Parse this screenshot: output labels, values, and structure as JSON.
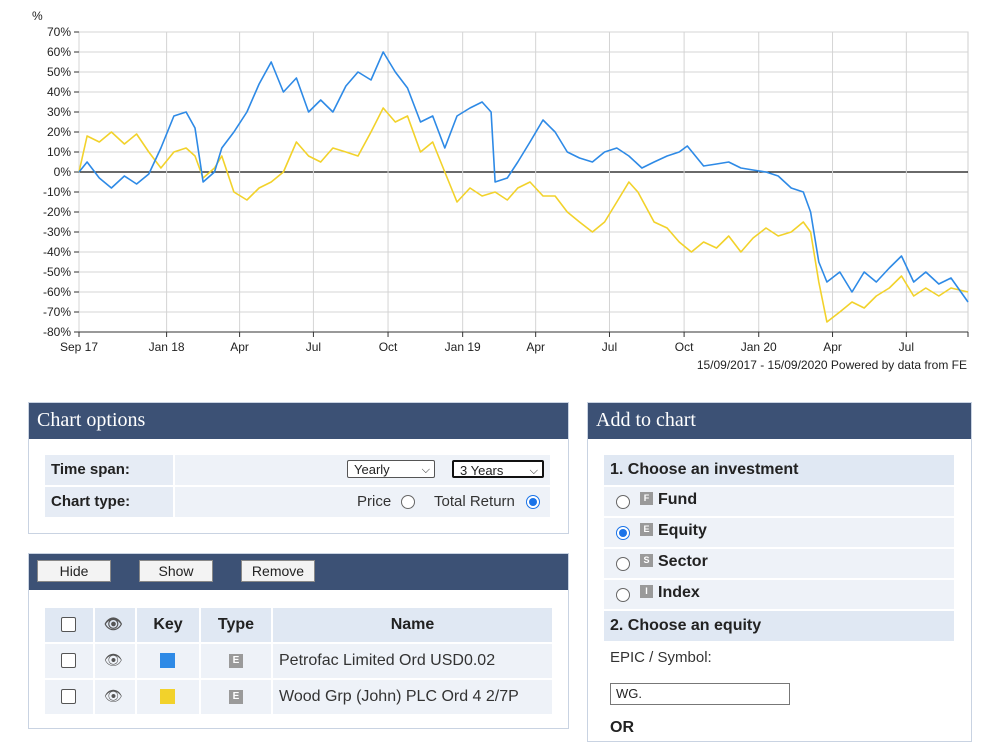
{
  "chart_data": {
    "type": "line",
    "ylabel": "%",
    "ylim": [
      -80,
      70
    ],
    "yticks": [
      70,
      60,
      50,
      40,
      30,
      20,
      10,
      0,
      -10,
      -20,
      -30,
      -40,
      -50,
      -60,
      -70,
      -80
    ],
    "ytick_labels": [
      "70%",
      "60%",
      "50%",
      "40%",
      "30%",
      "20%",
      "10%",
      "0%",
      "-10%",
      "-20%",
      "-30%",
      "-40%",
      "-50%",
      "-60%",
      "-70%",
      "-80%"
    ],
    "xticks": [
      "2017-09-15",
      "2018-01-01",
      "2018-04-01",
      "2018-07-01",
      "2018-10-01",
      "2019-01-01",
      "2019-04-01",
      "2019-07-01",
      "2019-10-01",
      "2020-01-01",
      "2020-04-01",
      "2020-07-01"
    ],
    "xtick_labels": [
      "Sep 17",
      "Jan 18",
      "Apr",
      "Jul",
      "Oct",
      "Jan 19",
      "Apr",
      "Jul",
      "Oct",
      "Jan 20",
      "Apr",
      "Jul"
    ],
    "xlim": [
      "2017-09-15",
      "2020-09-15"
    ],
    "grid": true,
    "footer": "15/09/2017 - 15/09/2020 Powered by data from FE",
    "series": [
      {
        "color": "#2e8ae6",
        "points": [
          [
            "2017-09-15",
            0
          ],
          [
            "2017-09-25",
            5
          ],
          [
            "2017-10-10",
            -3
          ],
          [
            "2017-10-25",
            -8
          ],
          [
            "2017-11-10",
            -2
          ],
          [
            "2017-11-25",
            -6
          ],
          [
            "2017-12-10",
            -1
          ],
          [
            "2017-12-25",
            12
          ],
          [
            "2018-01-10",
            28
          ],
          [
            "2018-01-25",
            30
          ],
          [
            "2018-02-05",
            22
          ],
          [
            "2018-02-15",
            -5
          ],
          [
            "2018-03-01",
            0
          ],
          [
            "2018-03-10",
            12
          ],
          [
            "2018-03-25",
            20
          ],
          [
            "2018-04-10",
            30
          ],
          [
            "2018-04-25",
            44
          ],
          [
            "2018-05-10",
            55
          ],
          [
            "2018-05-25",
            40
          ],
          [
            "2018-06-10",
            47
          ],
          [
            "2018-06-25",
            30
          ],
          [
            "2018-07-10",
            36
          ],
          [
            "2018-07-25",
            30
          ],
          [
            "2018-08-10",
            43
          ],
          [
            "2018-08-25",
            50
          ],
          [
            "2018-09-10",
            46
          ],
          [
            "2018-09-25",
            60
          ],
          [
            "2018-10-10",
            50
          ],
          [
            "2018-10-25",
            42
          ],
          [
            "2018-11-10",
            25
          ],
          [
            "2018-11-25",
            28
          ],
          [
            "2018-12-10",
            12
          ],
          [
            "2018-12-25",
            28
          ],
          [
            "2019-01-10",
            32
          ],
          [
            "2019-01-25",
            35
          ],
          [
            "2019-02-05",
            30
          ],
          [
            "2019-02-10",
            -5
          ],
          [
            "2019-02-25",
            -3
          ],
          [
            "2019-03-10",
            5
          ],
          [
            "2019-03-25",
            15
          ],
          [
            "2019-04-10",
            26
          ],
          [
            "2019-04-25",
            20
          ],
          [
            "2019-05-10",
            10
          ],
          [
            "2019-05-25",
            7
          ],
          [
            "2019-06-10",
            5
          ],
          [
            "2019-06-25",
            10
          ],
          [
            "2019-07-10",
            12
          ],
          [
            "2019-07-25",
            8
          ],
          [
            "2019-08-10",
            2
          ],
          [
            "2019-08-25",
            5
          ],
          [
            "2019-09-10",
            8
          ],
          [
            "2019-09-25",
            10
          ],
          [
            "2019-10-05",
            13
          ],
          [
            "2019-10-25",
            3
          ],
          [
            "2019-11-10",
            4
          ],
          [
            "2019-11-25",
            5
          ],
          [
            "2019-12-10",
            2
          ],
          [
            "2019-12-25",
            1
          ],
          [
            "2020-01-10",
            0
          ],
          [
            "2020-01-25",
            -2
          ],
          [
            "2020-02-10",
            -8
          ],
          [
            "2020-02-25",
            -10
          ],
          [
            "2020-03-05",
            -20
          ],
          [
            "2020-03-15",
            -45
          ],
          [
            "2020-03-25",
            -55
          ],
          [
            "2020-04-10",
            -50
          ],
          [
            "2020-04-25",
            -60
          ],
          [
            "2020-05-10",
            -50
          ],
          [
            "2020-05-25",
            -55
          ],
          [
            "2020-06-10",
            -48
          ],
          [
            "2020-06-25",
            -42
          ],
          [
            "2020-07-10",
            -55
          ],
          [
            "2020-07-25",
            -50
          ],
          [
            "2020-08-10",
            -56
          ],
          [
            "2020-08-25",
            -53
          ],
          [
            "2020-09-15",
            -65
          ]
        ]
      },
      {
        "color": "#f2d22b",
        "points": [
          [
            "2017-09-15",
            0
          ],
          [
            "2017-09-25",
            18
          ],
          [
            "2017-10-10",
            15
          ],
          [
            "2017-10-25",
            20
          ],
          [
            "2017-11-10",
            14
          ],
          [
            "2017-11-25",
            19
          ],
          [
            "2017-12-10",
            10
          ],
          [
            "2017-12-25",
            2
          ],
          [
            "2018-01-10",
            10
          ],
          [
            "2018-01-25",
            12
          ],
          [
            "2018-02-05",
            8
          ],
          [
            "2018-02-15",
            -3
          ],
          [
            "2018-03-01",
            2
          ],
          [
            "2018-03-10",
            8
          ],
          [
            "2018-03-25",
            -10
          ],
          [
            "2018-04-10",
            -14
          ],
          [
            "2018-04-25",
            -8
          ],
          [
            "2018-05-10",
            -5
          ],
          [
            "2018-05-25",
            0
          ],
          [
            "2018-06-10",
            15
          ],
          [
            "2018-06-25",
            8
          ],
          [
            "2018-07-10",
            5
          ],
          [
            "2018-07-25",
            12
          ],
          [
            "2018-08-10",
            10
          ],
          [
            "2018-08-25",
            8
          ],
          [
            "2018-09-10",
            20
          ],
          [
            "2018-09-25",
            32
          ],
          [
            "2018-10-10",
            25
          ],
          [
            "2018-10-25",
            28
          ],
          [
            "2018-11-10",
            10
          ],
          [
            "2018-11-25",
            15
          ],
          [
            "2018-12-10",
            0
          ],
          [
            "2018-12-25",
            -15
          ],
          [
            "2019-01-10",
            -8
          ],
          [
            "2019-01-25",
            -12
          ],
          [
            "2019-02-10",
            -10
          ],
          [
            "2019-02-25",
            -14
          ],
          [
            "2019-03-10",
            -8
          ],
          [
            "2019-03-25",
            -5
          ],
          [
            "2019-04-10",
            -12
          ],
          [
            "2019-04-25",
            -12
          ],
          [
            "2019-05-10",
            -20
          ],
          [
            "2019-05-25",
            -25
          ],
          [
            "2019-06-10",
            -30
          ],
          [
            "2019-06-25",
            -25
          ],
          [
            "2019-07-10",
            -15
          ],
          [
            "2019-07-25",
            -5
          ],
          [
            "2019-08-05",
            -10
          ],
          [
            "2019-08-25",
            -25
          ],
          [
            "2019-09-10",
            -28
          ],
          [
            "2019-09-25",
            -35
          ],
          [
            "2019-10-10",
            -40
          ],
          [
            "2019-10-25",
            -35
          ],
          [
            "2019-11-10",
            -38
          ],
          [
            "2019-11-25",
            -32
          ],
          [
            "2019-12-10",
            -40
          ],
          [
            "2019-12-25",
            -33
          ],
          [
            "2020-01-10",
            -28
          ],
          [
            "2020-01-25",
            -32
          ],
          [
            "2020-02-10",
            -30
          ],
          [
            "2020-02-25",
            -25
          ],
          [
            "2020-03-05",
            -30
          ],
          [
            "2020-03-15",
            -55
          ],
          [
            "2020-03-25",
            -75
          ],
          [
            "2020-04-10",
            -70
          ],
          [
            "2020-04-25",
            -65
          ],
          [
            "2020-05-10",
            -68
          ],
          [
            "2020-05-25",
            -62
          ],
          [
            "2020-06-10",
            -58
          ],
          [
            "2020-06-25",
            -52
          ],
          [
            "2020-07-10",
            -62
          ],
          [
            "2020-07-25",
            -58
          ],
          [
            "2020-08-10",
            -62
          ],
          [
            "2020-08-25",
            -58
          ],
          [
            "2020-09-15",
            -60
          ]
        ]
      }
    ]
  },
  "chart_options": {
    "title": "Chart options",
    "time_span_label": "Time span:",
    "interval_value": "Yearly",
    "span_value": "3 Years",
    "chart_type_label": "Chart type:",
    "price_label": "Price",
    "total_return_label": "Total Return",
    "selected_type": "Total Return"
  },
  "series_panel": {
    "hide_label": "Hide",
    "show_label": "Show",
    "remove_label": "Remove",
    "headers": {
      "key": "Key",
      "type": "Type",
      "name": "Name"
    },
    "rows": [
      {
        "type_badge": "E",
        "name": "Petrofac Limited Ord USD0.02",
        "key_color": "#2e8ae6"
      },
      {
        "type_badge": "E",
        "name": "Wood Grp (John) PLC Ord 4 2/7P",
        "key_color": "#f2d22b"
      }
    ]
  },
  "add_to_chart": {
    "title": "Add to chart",
    "step1": "1. Choose an investment",
    "options": [
      {
        "badge": "F",
        "label": "Fund",
        "selected": false
      },
      {
        "badge": "E",
        "label": "Equity",
        "selected": true
      },
      {
        "badge": "S",
        "label": "Sector",
        "selected": false
      },
      {
        "badge": "I",
        "label": "Index",
        "selected": false
      }
    ],
    "step2": "2. Choose an equity",
    "epic_label": "EPIC / Symbol:",
    "epic_value": "WG.",
    "or_label": "OR"
  }
}
